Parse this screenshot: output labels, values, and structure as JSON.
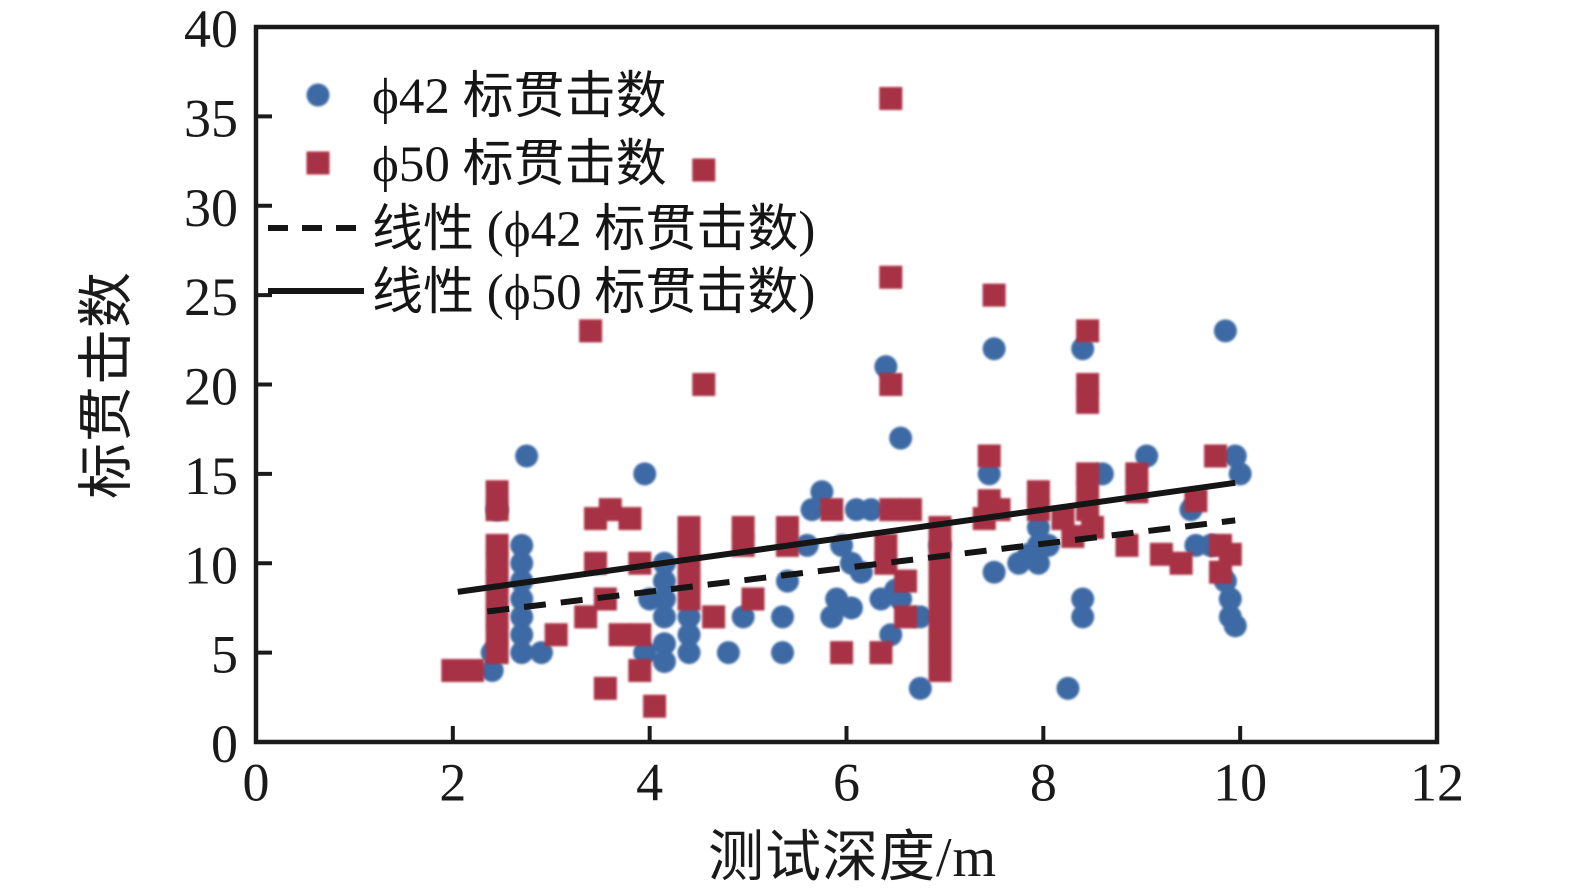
{
  "chart_data": {
    "type": "scatter",
    "title": "",
    "xlabel": "测试深度/m",
    "ylabel": "标贯击数",
    "xlim": [
      0,
      12
    ],
    "ylim": [
      0,
      40
    ],
    "xticks": [
      0,
      2,
      4,
      6,
      8,
      10,
      12
    ],
    "yticks": [
      0,
      5,
      10,
      15,
      20,
      25,
      30,
      35,
      40
    ],
    "grid": false,
    "legend_position": "top-left",
    "frame_color": "#1a1a1a",
    "series": [
      {
        "name": "ϕ42 标贯击数",
        "kind": "scatter",
        "marker": "circle",
        "color": "#3e6ba4",
        "points": [
          [
            2.4,
            5
          ],
          [
            2.4,
            4
          ],
          [
            2.45,
            13
          ],
          [
            2.7,
            11
          ],
          [
            2.7,
            10
          ],
          [
            2.7,
            9
          ],
          [
            2.7,
            8
          ],
          [
            2.7,
            7
          ],
          [
            2.7,
            6
          ],
          [
            2.7,
            5
          ],
          [
            2.75,
            16
          ],
          [
            2.9,
            5
          ],
          [
            3.95,
            15
          ],
          [
            3.95,
            5
          ],
          [
            4.0,
            8
          ],
          [
            4.15,
            10
          ],
          [
            4.15,
            9
          ],
          [
            4.15,
            8
          ],
          [
            4.15,
            7
          ],
          [
            4.15,
            5.5
          ],
          [
            4.15,
            4.5
          ],
          [
            4.4,
            7
          ],
          [
            4.4,
            6
          ],
          [
            4.4,
            5
          ],
          [
            4.8,
            5
          ],
          [
            4.95,
            7
          ],
          [
            5.35,
            7
          ],
          [
            5.35,
            5
          ],
          [
            5.4,
            9
          ],
          [
            5.6,
            11
          ],
          [
            5.65,
            13
          ],
          [
            5.75,
            14
          ],
          [
            5.85,
            7
          ],
          [
            5.9,
            8
          ],
          [
            5.95,
            11
          ],
          [
            6.05,
            7.5
          ],
          [
            6.05,
            10
          ],
          [
            6.1,
            13
          ],
          [
            6.15,
            9.5
          ],
          [
            6.25,
            13
          ],
          [
            6.35,
            8
          ],
          [
            6.4,
            21
          ],
          [
            6.45,
            6
          ],
          [
            6.5,
            8.5
          ],
          [
            6.55,
            8
          ],
          [
            6.55,
            17
          ],
          [
            6.75,
            7
          ],
          [
            6.75,
            3
          ],
          [
            6.95,
            11
          ],
          [
            7.45,
            15
          ],
          [
            7.5,
            22
          ],
          [
            7.5,
            9.5
          ],
          [
            7.75,
            10
          ],
          [
            7.85,
            10.5
          ],
          [
            7.95,
            12
          ],
          [
            7.95,
            11
          ],
          [
            7.95,
            10
          ],
          [
            8.05,
            11
          ],
          [
            8.25,
            3
          ],
          [
            8.4,
            22
          ],
          [
            8.4,
            8
          ],
          [
            8.4,
            7
          ],
          [
            8.6,
            15
          ],
          [
            9.05,
            16
          ],
          [
            9.5,
            13
          ],
          [
            9.55,
            11
          ],
          [
            9.7,
            11
          ],
          [
            9.85,
            23
          ],
          [
            9.85,
            9
          ],
          [
            9.9,
            8
          ],
          [
            9.9,
            7
          ],
          [
            9.95,
            6.5
          ],
          [
            9.95,
            16
          ],
          [
            10.0,
            15
          ]
        ]
      },
      {
        "name": "ϕ50 标贯击数",
        "kind": "scatter",
        "marker": "square",
        "color": "#a83245",
        "points": [
          [
            2.0,
            4
          ],
          [
            2.2,
            4
          ],
          [
            2.45,
            14
          ],
          [
            2.45,
            13
          ],
          [
            2.45,
            11
          ],
          [
            2.45,
            10
          ],
          [
            2.45,
            9
          ],
          [
            2.45,
            8
          ],
          [
            2.45,
            7
          ],
          [
            2.45,
            6
          ],
          [
            2.45,
            5
          ],
          [
            3.05,
            6
          ],
          [
            3.35,
            7
          ],
          [
            3.4,
            23
          ],
          [
            3.45,
            12.5
          ],
          [
            3.45,
            10
          ],
          [
            3.55,
            8
          ],
          [
            3.7,
            6
          ],
          [
            3.55,
            3
          ],
          [
            3.6,
            13
          ],
          [
            3.8,
            12.5
          ],
          [
            3.9,
            10
          ],
          [
            3.9,
            6
          ],
          [
            3.9,
            4
          ],
          [
            4.05,
            2
          ],
          [
            4.4,
            12
          ],
          [
            4.4,
            11
          ],
          [
            4.4,
            10
          ],
          [
            4.4,
            9
          ],
          [
            4.4,
            8
          ],
          [
            4.55,
            32
          ],
          [
            4.55,
            20
          ],
          [
            4.65,
            7
          ],
          [
            4.95,
            12
          ],
          [
            4.95,
            11
          ],
          [
            5.05,
            8
          ],
          [
            5.4,
            12
          ],
          [
            5.4,
            11
          ],
          [
            5.85,
            13
          ],
          [
            5.95,
            5
          ],
          [
            6.35,
            5
          ],
          [
            6.4,
            11
          ],
          [
            6.4,
            10
          ],
          [
            6.45,
            36
          ],
          [
            6.45,
            26
          ],
          [
            6.45,
            20
          ],
          [
            6.45,
            13
          ],
          [
            6.65,
            13
          ],
          [
            6.6,
            9
          ],
          [
            6.6,
            7
          ],
          [
            6.95,
            12
          ],
          [
            6.95,
            11
          ],
          [
            6.95,
            10
          ],
          [
            6.95,
            9
          ],
          [
            6.95,
            8
          ],
          [
            6.95,
            7
          ],
          [
            6.95,
            6
          ],
          [
            6.95,
            5
          ],
          [
            6.95,
            4
          ],
          [
            7.4,
            12.5
          ],
          [
            7.45,
            16
          ],
          [
            7.45,
            13.5
          ],
          [
            7.5,
            25
          ],
          [
            7.55,
            13
          ],
          [
            7.95,
            14
          ],
          [
            7.95,
            13
          ],
          [
            8.2,
            12.5
          ],
          [
            8.3,
            11.5
          ],
          [
            8.45,
            23
          ],
          [
            8.45,
            20
          ],
          [
            8.45,
            19
          ],
          [
            8.45,
            15
          ],
          [
            8.45,
            14
          ],
          [
            8.45,
            13
          ],
          [
            8.5,
            12
          ],
          [
            8.85,
            11
          ],
          [
            8.95,
            15
          ],
          [
            8.95,
            14
          ],
          [
            9.2,
            10.5
          ],
          [
            9.4,
            10
          ],
          [
            9.55,
            13.5
          ],
          [
            9.75,
            16
          ],
          [
            9.8,
            11
          ],
          [
            9.9,
            10.5
          ],
          [
            9.8,
            9.5
          ]
        ]
      },
      {
        "name": "线性 (ϕ42 标贯击数)",
        "kind": "line",
        "style": "dashed",
        "color": "#151515",
        "points": [
          [
            2.35,
            7.3
          ],
          [
            9.95,
            12.4
          ]
        ]
      },
      {
        "name": "线性 (ϕ50 标贯击数)",
        "kind": "line",
        "style": "solid",
        "color": "#151515",
        "points": [
          [
            2.05,
            8.4
          ],
          [
            9.95,
            14.5
          ]
        ]
      }
    ]
  }
}
